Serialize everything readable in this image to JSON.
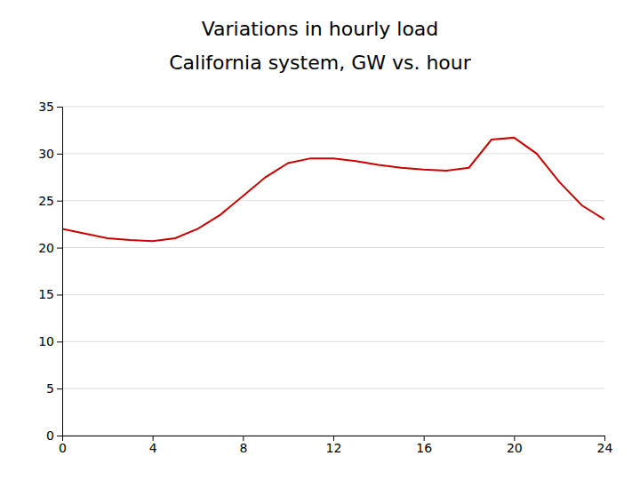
{
  "chart_data": {
    "type": "line",
    "title": "Variations in hourly load",
    "subtitle": "California system, GW vs. hour",
    "x": [
      0,
      1,
      2,
      3,
      4,
      5,
      6,
      7,
      8,
      9,
      10,
      11,
      12,
      13,
      14,
      15,
      16,
      17,
      18,
      19,
      20,
      21,
      22,
      23,
      24
    ],
    "values": [
      22.0,
      21.5,
      21.0,
      20.8,
      20.7,
      21.0,
      22.0,
      23.5,
      25.5,
      27.5,
      29.0,
      29.5,
      29.5,
      29.2,
      28.8,
      28.5,
      28.3,
      28.2,
      28.5,
      31.5,
      31.7,
      30.0,
      27.0,
      24.5,
      23.0
    ],
    "color": "#cc0000",
    "xlim": [
      0,
      24
    ],
    "ylim": [
      0,
      35
    ],
    "xticks": [
      0,
      4,
      8,
      12,
      16,
      20,
      24
    ],
    "yticks": [
      0,
      5,
      10,
      15,
      20,
      25,
      30,
      35
    ],
    "grid": true
  }
}
